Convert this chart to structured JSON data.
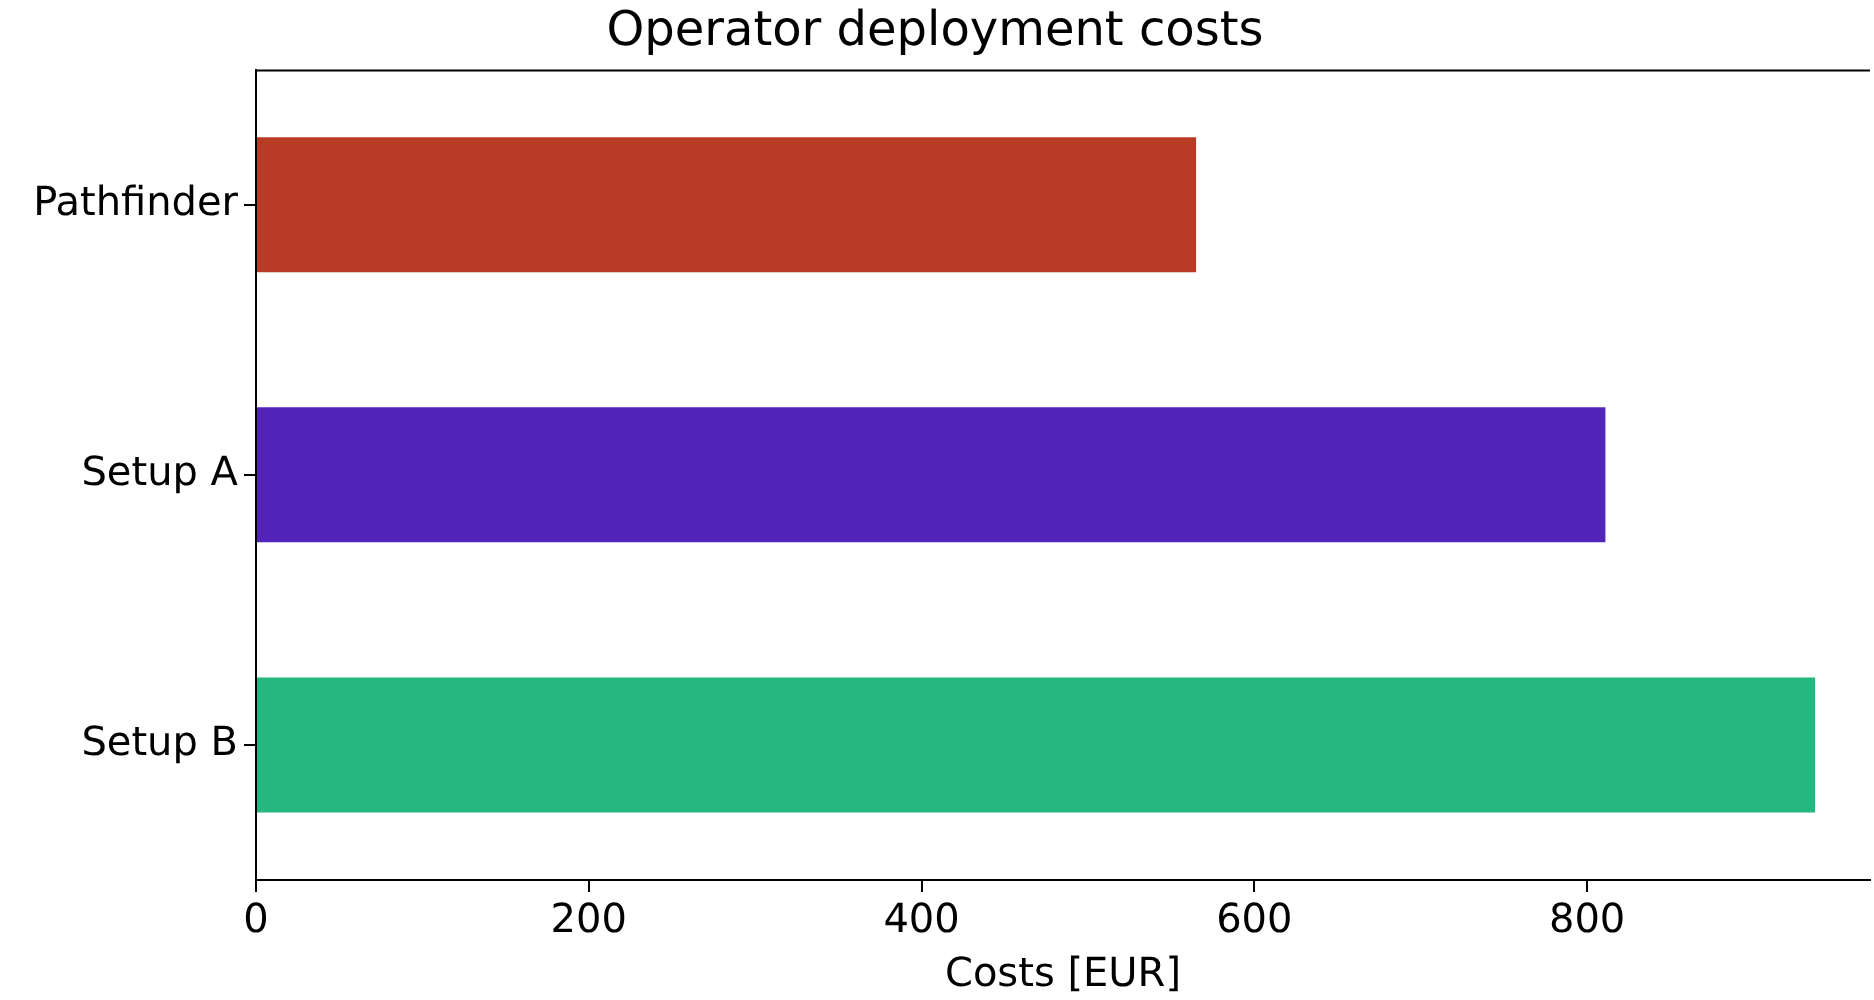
{
  "chart_data": {
    "type": "bar",
    "orientation": "horizontal",
    "title": "Operator deployment costs",
    "xlabel": "Costs [EUR]",
    "categories": [
      "Pathfinder",
      "Setup A",
      "Setup B"
    ],
    "values": [
      565,
      811,
      937
    ],
    "colors": [
      "#b83c25",
      "#5225b8",
      "#25b87e"
    ],
    "xlim": [
      0,
      970
    ],
    "xticks": [
      0,
      200,
      400,
      600,
      800
    ],
    "grid": false,
    "legend": false
  }
}
